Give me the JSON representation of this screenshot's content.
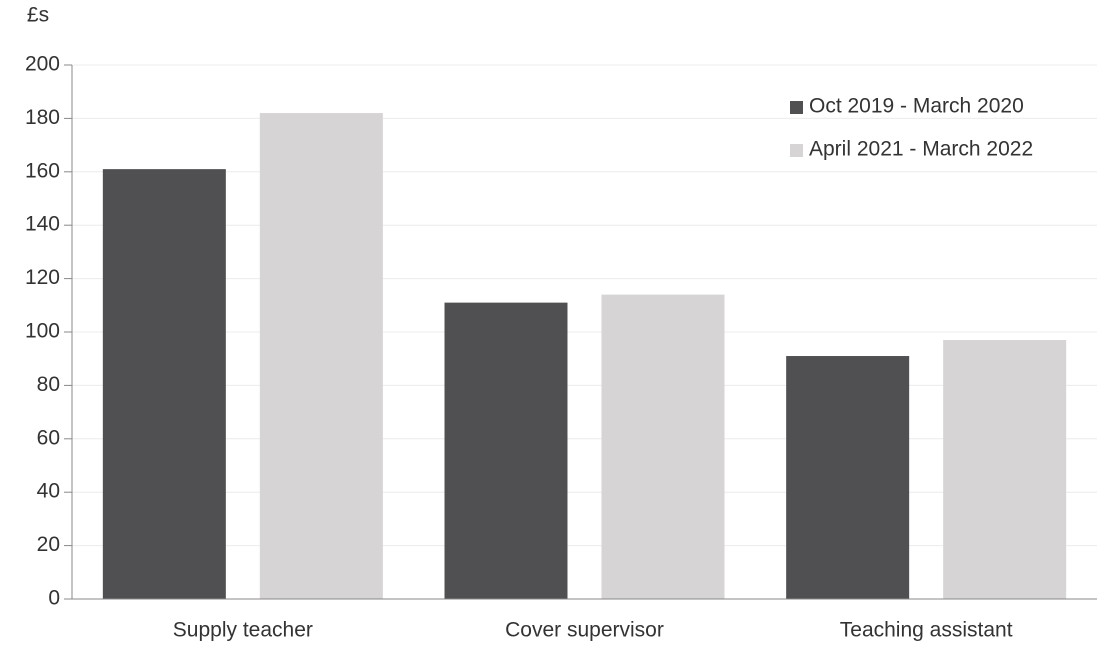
{
  "chart_data": {
    "type": "bar",
    "y_label": "£s",
    "categories": [
      "Supply teacher",
      "Cover supervisor",
      "Teaching assistant"
    ],
    "series": [
      {
        "name": "Oct 2019 - March 2020",
        "color": "#505052",
        "values": [
          161,
          111,
          91
        ]
      },
      {
        "name": "April 2021 - March 2022",
        "color": "#d6d4d5",
        "values": [
          182,
          114,
          97
        ]
      }
    ],
    "ylim": [
      0,
      200
    ],
    "yticks": [
      0,
      20,
      40,
      60,
      80,
      100,
      120,
      140,
      160,
      180,
      200
    ],
    "grid": true,
    "legend": "upper right"
  }
}
